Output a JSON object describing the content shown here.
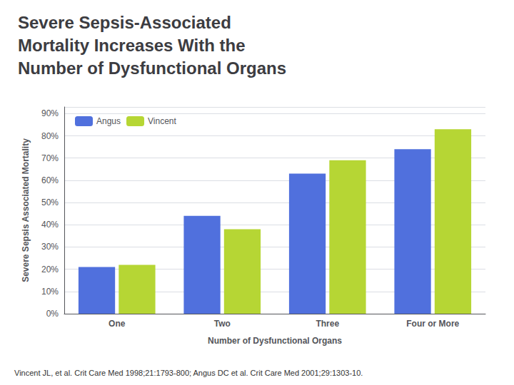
{
  "chart_data": {
    "type": "bar",
    "title": "Severe Sepsis-Associated\nMortality Increases With the\nNumber of Dysfunctional Organs",
    "xlabel": "Number of Dysfunctional Organs",
    "ylabel": "Severe Sepsis Associated Mortality",
    "categories": [
      "One",
      "Two",
      "Three",
      "Four or More"
    ],
    "series": [
      {
        "name": "Angus",
        "values": [
          21,
          44,
          63,
          74
        ]
      },
      {
        "name": "Vincent",
        "values": [
          22,
          38,
          69,
          83
        ]
      }
    ],
    "ylim": [
      0,
      93
    ],
    "yticks": [
      {
        "value": 0,
        "label": "0%"
      },
      {
        "value": 10,
        "label": "10%"
      },
      {
        "value": 20,
        "label": "20%"
      },
      {
        "value": 30,
        "label": "30%"
      },
      {
        "value": 40,
        "label": "40%"
      },
      {
        "value": 50,
        "label": "50%"
      },
      {
        "value": 60,
        "label": "60%"
      },
      {
        "value": 70,
        "label": "70%"
      },
      {
        "value": 80,
        "label": "80%"
      },
      {
        "value": 90,
        "label": "90%"
      }
    ],
    "grid": true,
    "legend": "upper left",
    "annotations": [
      "Vincent JL, et al. Crit Care Med 1998;21:1793-800; Angus DC et al. Crit Care Med 2001;29:1303-10."
    ]
  }
}
